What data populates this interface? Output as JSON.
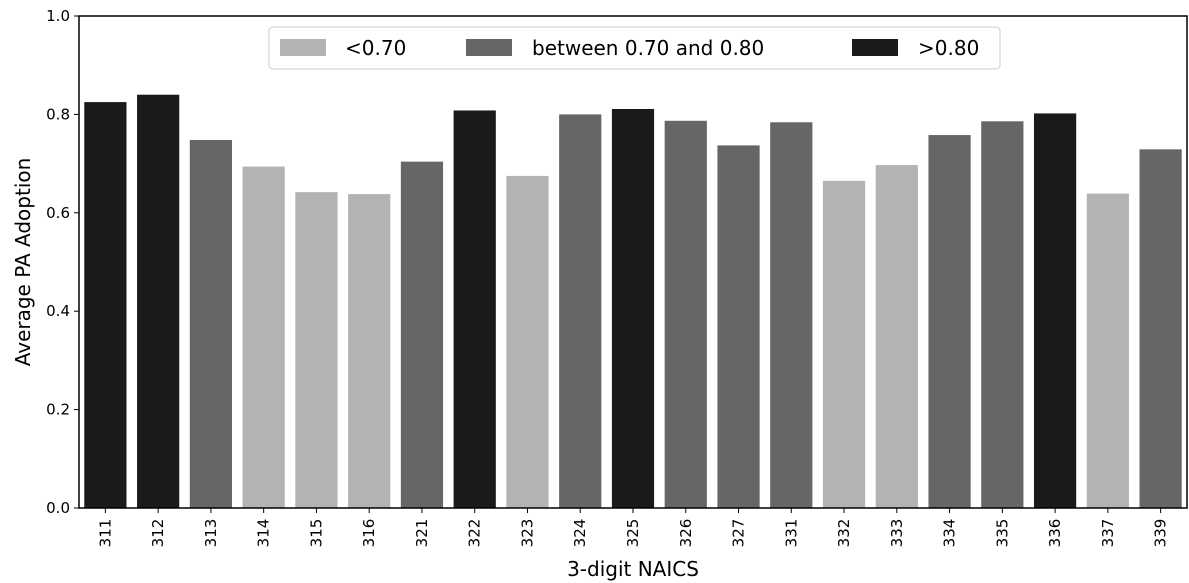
{
  "chart_data": {
    "type": "bar",
    "xlabel": "3-digit NAICS",
    "ylabel": "Average PA Adoption",
    "ylim": [
      0.0,
      1.0
    ],
    "yticks": [
      "0.0",
      "0.2",
      "0.4",
      "0.6",
      "0.8",
      "1.0"
    ],
    "grid": false,
    "legend_position": "top-center",
    "legend": [
      {
        "label": "<0.70",
        "color": "#b3b3b3"
      },
      {
        "label": "between 0.70 and 0.80",
        "color": "#666666"
      },
      {
        "label": ">0.80",
        "color": "#1a1a1a"
      }
    ],
    "categories": [
      "311",
      "312",
      "313",
      "314",
      "315",
      "316",
      "321",
      "322",
      "323",
      "324",
      "325",
      "326",
      "327",
      "331",
      "332",
      "333",
      "334",
      "335",
      "336",
      "337",
      "339"
    ],
    "values": [
      0.825,
      0.84,
      0.748,
      0.694,
      0.642,
      0.638,
      0.704,
      0.808,
      0.675,
      0.8,
      0.811,
      0.787,
      0.737,
      0.784,
      0.665,
      0.697,
      0.758,
      0.786,
      0.802,
      0.639,
      0.729
    ]
  }
}
